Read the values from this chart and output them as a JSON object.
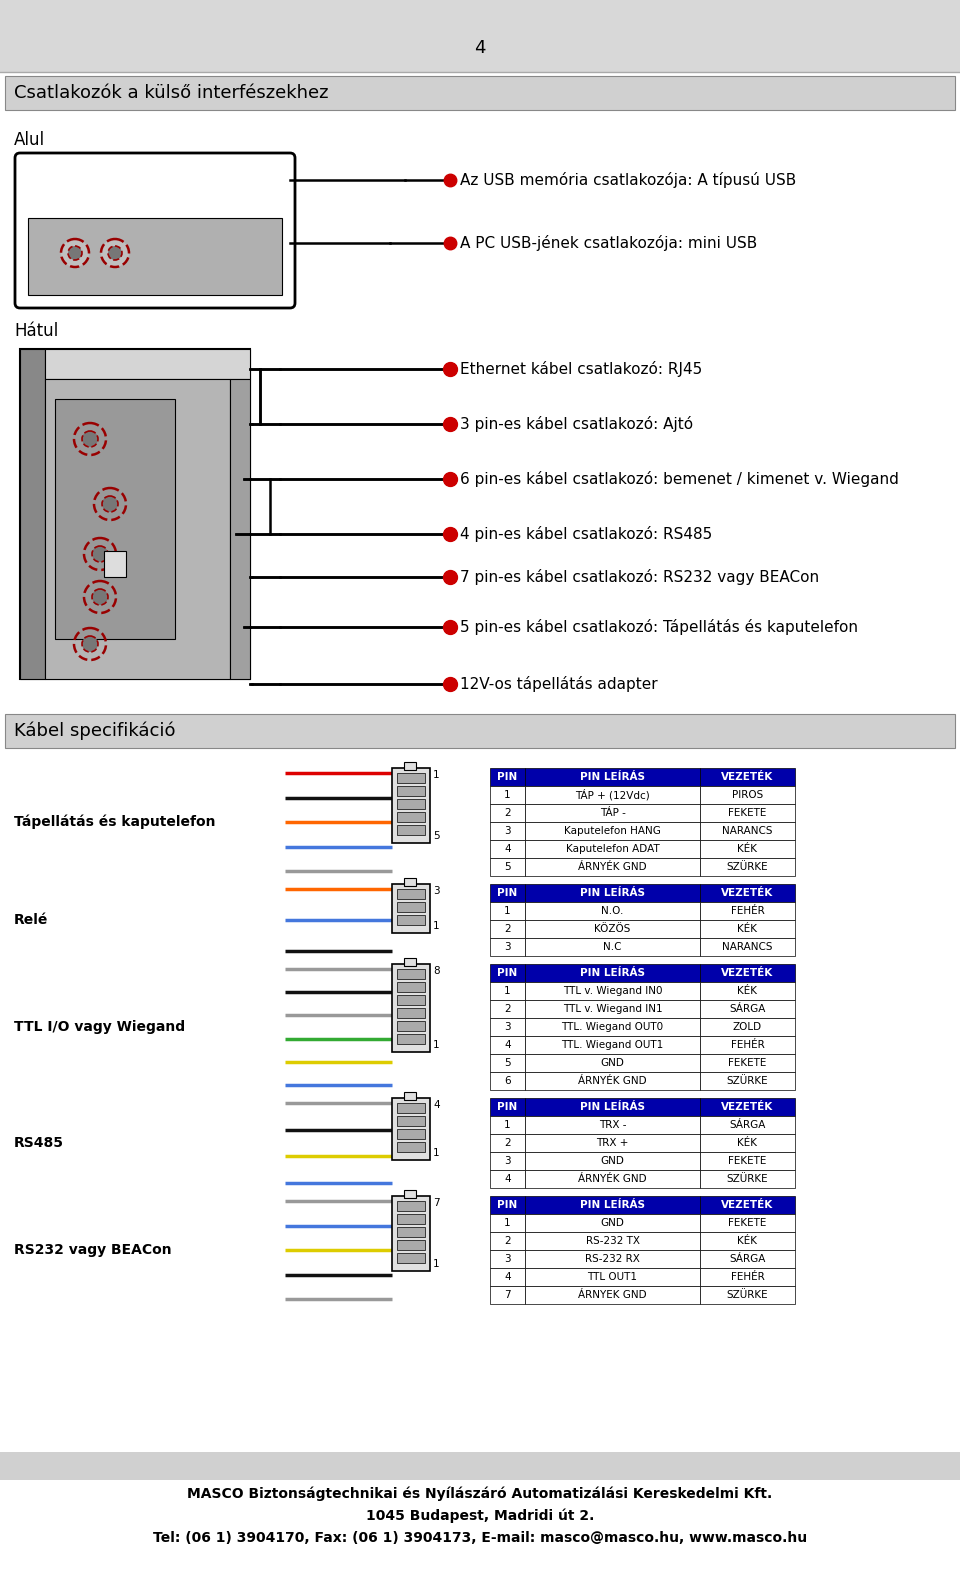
{
  "bg_color": "#d8d8d8",
  "white": "#ffffff",
  "black": "#000000",
  "red": "#cc0000",
  "dark_red": "#990000",
  "gray": "#aaaaaa",
  "light_gray": "#d0d0d0",
  "dark_gray": "#555555",
  "blue_header": "#0000cc",
  "page_num": "4",
  "header_title": "Csatlakozók a külső interfészekhez",
  "label_alul": "Alul",
  "label_hatul": "Hátul",
  "bullet_texts": [
    "Az USB memória csatlakozója: A típusú USB",
    "A PC USB-jének csatlakozója: mini USB",
    "Ethernet kábel csatlakozó: RJ45",
    "3 pin-es kábel csatlakozó: Ajtó",
    "6 pin-es kábel csatlakozó: bemenet / kimenet v. Wiegand",
    "4 pin-es kábel csatlakozó: RS485",
    "7 pin-es kábel csatlakozó: RS232 vagy BEACon",
    "5 pin-es kábel csatlakozó: Tápellátás és kaputelefon",
    "12V-os tápellátás adapter"
  ],
  "cable_spec_title": "Kábel specifikáció",
  "wire_colors_tap": [
    "#dd0000",
    "#111111",
    "#ff6600",
    "#4477dd",
    "#999999"
  ],
  "wire_colors_rele": [
    "#ff6600",
    "#4477dd",
    "#111111"
  ],
  "wire_colors_ttl": [
    "#999999",
    "#111111",
    "#999999",
    "#33aa33",
    "#ddcc00",
    "#4477dd"
  ],
  "wire_colors_rs485": [
    "#999999",
    "#111111",
    "#ddcc00",
    "#4477dd"
  ],
  "wire_colors_rs232": [
    "#999999",
    "#4477dd",
    "#ddcc00",
    "#111111",
    "#999999"
  ],
  "table_headers": [
    "PIN",
    "PIN LEÍRÁS",
    "VEZETÉK"
  ],
  "tap_rows": [
    [
      "1",
      "TÁP + (12Vdc)",
      "PIROS"
    ],
    [
      "2",
      "TÁP -",
      "FEKETE"
    ],
    [
      "3",
      "Kaputelefon HANG",
      "NARANCS"
    ],
    [
      "4",
      "Kaputelefon ADAT",
      "KÉK"
    ],
    [
      "5",
      "ÁRNYÉK GND",
      "SZÜRKE"
    ]
  ],
  "rele_rows": [
    [
      "1",
      "N.O.",
      "FEHÉR"
    ],
    [
      "2",
      "KÖZÖS",
      "KÉK"
    ],
    [
      "3",
      "N.C",
      "NARANCS"
    ]
  ],
  "ttl_rows": [
    [
      "1",
      "TTL v. Wiegand IN0",
      "KÉK"
    ],
    [
      "2",
      "TTL v. Wiegand IN1",
      "SÁRGA"
    ],
    [
      "3",
      "TTL. Wiegand OUT0",
      "ZOLD"
    ],
    [
      "4",
      "TTL. Wiegand OUT1",
      "FEHÉR"
    ],
    [
      "5",
      "GND",
      "FEKETE"
    ],
    [
      "6",
      "ÁRNYÉK GND",
      "SZÜRKE"
    ]
  ],
  "rs485_rows": [
    [
      "1",
      "TRX -",
      "SÁRGA"
    ],
    [
      "2",
      "TRX +",
      "KÉK"
    ],
    [
      "3",
      "GND",
      "FEKETE"
    ],
    [
      "4",
      "ÁRNYÉK GND",
      "SZÜRKE"
    ]
  ],
  "rs232_rows": [
    [
      "1",
      "GND",
      "FEKETE"
    ],
    [
      "2",
      "RS-232 TX",
      "KÉK"
    ],
    [
      "3",
      "RS-232 RX",
      "SÁRGA"
    ],
    [
      "4",
      "TTL OUT1",
      "FEHÉR"
    ],
    [
      "7",
      "ÁRNYEK GND",
      "SZÜRKE"
    ]
  ],
  "footer_line1": "MASCO Biztonságtechnikai és Nyílászáró Automatizálási Kereskedelmi Kft.",
  "footer_line2": "1045 Budapest, Madridi út 2.",
  "footer_line3": "Tel: (06 1) 3904170, Fax: (06 1) 3904173, E-mail: masco@masco.hu, www.masco.hu"
}
